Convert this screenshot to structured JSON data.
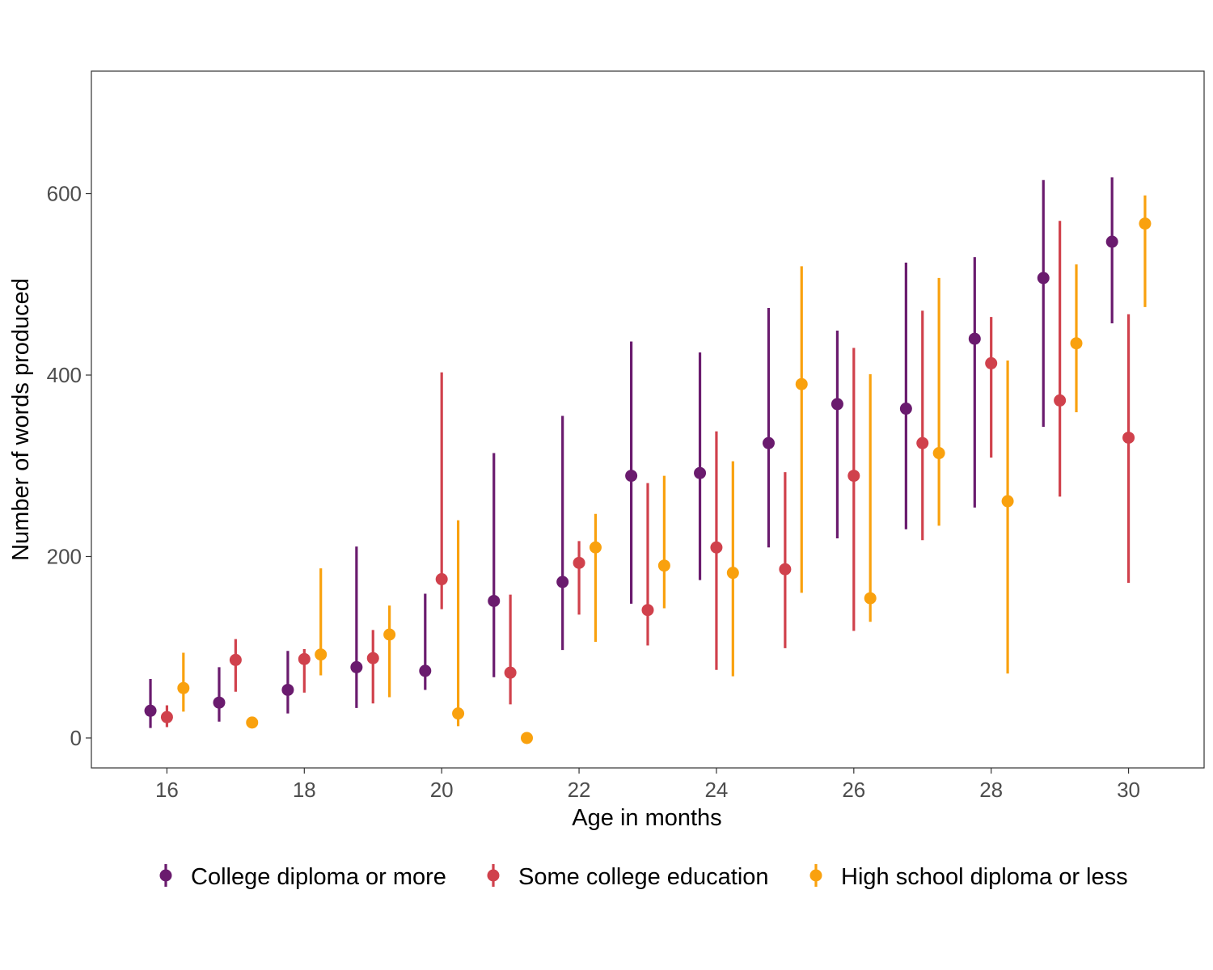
{
  "chart_data": {
    "type": "scatter",
    "subtype": "point-range",
    "title": "",
    "xlabel": "Age in months",
    "ylabel": "Number of words produced",
    "xlim": [
      14.9,
      31.1
    ],
    "ylim": [
      -33,
      735
    ],
    "xticks": [
      16,
      18,
      20,
      22,
      24,
      26,
      28,
      30
    ],
    "yticks": [
      0,
      200,
      400,
      600
    ],
    "grid": false,
    "legend_position": "bottom",
    "series": [
      {
        "name": "College diploma or more",
        "color": "#6a1b6e",
        "points": [
          {
            "x": 16,
            "y": 30,
            "low": 11,
            "high": 65
          },
          {
            "x": 17,
            "y": 39,
            "low": 18,
            "high": 78
          },
          {
            "x": 18,
            "y": 53,
            "low": 27,
            "high": 96
          },
          {
            "x": 19,
            "y": 78,
            "low": 33,
            "high": 211
          },
          {
            "x": 20,
            "y": 74,
            "low": 53,
            "high": 159
          },
          {
            "x": 21,
            "y": 151,
            "low": 67,
            "high": 314
          },
          {
            "x": 22,
            "y": 172,
            "low": 97,
            "high": 355
          },
          {
            "x": 23,
            "y": 289,
            "low": 148,
            "high": 437
          },
          {
            "x": 24,
            "y": 292,
            "low": 174,
            "high": 425
          },
          {
            "x": 25,
            "y": 325,
            "low": 210,
            "high": 474
          },
          {
            "x": 26,
            "y": 368,
            "low": 220,
            "high": 449
          },
          {
            "x": 27,
            "y": 363,
            "low": 230,
            "high": 524
          },
          {
            "x": 28,
            "y": 440,
            "low": 254,
            "high": 530
          },
          {
            "x": 29,
            "y": 507,
            "low": 343,
            "high": 615
          },
          {
            "x": 30,
            "y": 547,
            "low": 457,
            "high": 618
          }
        ]
      },
      {
        "name": "Some college education",
        "color": "#d0414c",
        "points": [
          {
            "x": 16,
            "y": 23,
            "low": 12,
            "high": 36
          },
          {
            "x": 17,
            "y": 86,
            "low": 51,
            "high": 109
          },
          {
            "x": 18,
            "y": 87,
            "low": 50,
            "high": 98
          },
          {
            "x": 19,
            "y": 88,
            "low": 38,
            "high": 119
          },
          {
            "x": 20,
            "y": 175,
            "low": 142,
            "high": 403
          },
          {
            "x": 21,
            "y": 72,
            "low": 37,
            "high": 158
          },
          {
            "x": 22,
            "y": 193,
            "low": 136,
            "high": 217
          },
          {
            "x": 23,
            "y": 141,
            "low": 102,
            "high": 281
          },
          {
            "x": 24,
            "y": 210,
            "low": 75,
            "high": 338
          },
          {
            "x": 25,
            "y": 186,
            "low": 99,
            "high": 293
          },
          {
            "x": 26,
            "y": 289,
            "low": 118,
            "high": 430
          },
          {
            "x": 27,
            "y": 325,
            "low": 218,
            "high": 471
          },
          {
            "x": 28,
            "y": 413,
            "low": 309,
            "high": 464
          },
          {
            "x": 29,
            "y": 372,
            "low": 266,
            "high": 570
          },
          {
            "x": 30,
            "y": 331,
            "low": 171,
            "high": 467
          }
        ]
      },
      {
        "name": "High school diploma or less",
        "color": "#f9a10e",
        "points": [
          {
            "x": 16,
            "y": 55,
            "low": 29,
            "high": 94
          },
          {
            "x": 17,
            "y": 17,
            "low": 17,
            "high": 17
          },
          {
            "x": 18,
            "y": 92,
            "low": 69,
            "high": 187
          },
          {
            "x": 19,
            "y": 114,
            "low": 45,
            "high": 146
          },
          {
            "x": 20,
            "y": 27,
            "low": 13,
            "high": 240
          },
          {
            "x": 21,
            "y": 0,
            "low": 0,
            "high": 0
          },
          {
            "x": 22,
            "y": 210,
            "low": 106,
            "high": 247
          },
          {
            "x": 23,
            "y": 190,
            "low": 143,
            "high": 289
          },
          {
            "x": 24,
            "y": 182,
            "low": 68,
            "high": 305
          },
          {
            "x": 25,
            "y": 390,
            "low": 160,
            "high": 520
          },
          {
            "x": 26,
            "y": 154,
            "low": 128,
            "high": 401
          },
          {
            "x": 27,
            "y": 314,
            "low": 234,
            "high": 507
          },
          {
            "x": 28,
            "y": 261,
            "low": 71,
            "high": 416
          },
          {
            "x": 29,
            "y": 435,
            "low": 359,
            "high": 522
          },
          {
            "x": 30,
            "y": 567,
            "low": 475,
            "high": 598
          }
        ]
      }
    ]
  }
}
